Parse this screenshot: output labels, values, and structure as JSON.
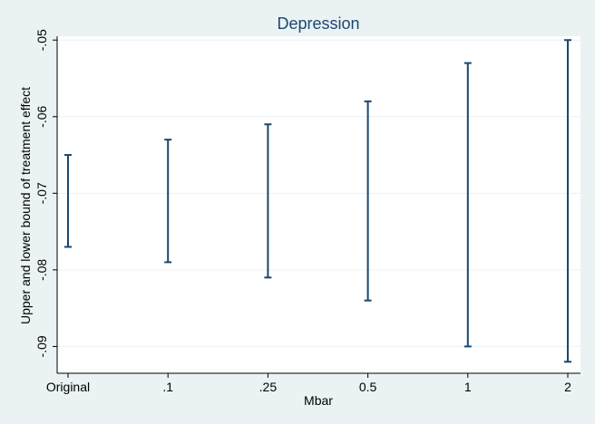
{
  "chart_data": {
    "type": "range-bar",
    "title": "Depression",
    "xlabel": "Mbar",
    "ylabel": "Upper and lower bound of treatment effect",
    "categories": [
      "Original",
      ".1",
      ".25",
      "0.5",
      "1",
      "2"
    ],
    "series": [
      {
        "upper": [
          -0.065,
          -0.063,
          -0.061,
          -0.058,
          -0.053,
          -0.05
        ],
        "lower": [
          -0.077,
          -0.079,
          -0.081,
          -0.084,
          -0.09,
          -0.092
        ]
      }
    ],
    "ylim": [
      -0.0935,
      -0.0495
    ],
    "yticks": [
      -0.09,
      -0.08,
      -0.07,
      -0.06,
      -0.05
    ],
    "ytick_labels": [
      "-.09",
      "-.08",
      "-.07",
      "-.06",
      "-.05"
    ],
    "grid": true,
    "colors": {
      "background": "#eaf2f3",
      "plot": "#ffffff",
      "bars": "#1a476f",
      "title": "#1a476f"
    }
  }
}
